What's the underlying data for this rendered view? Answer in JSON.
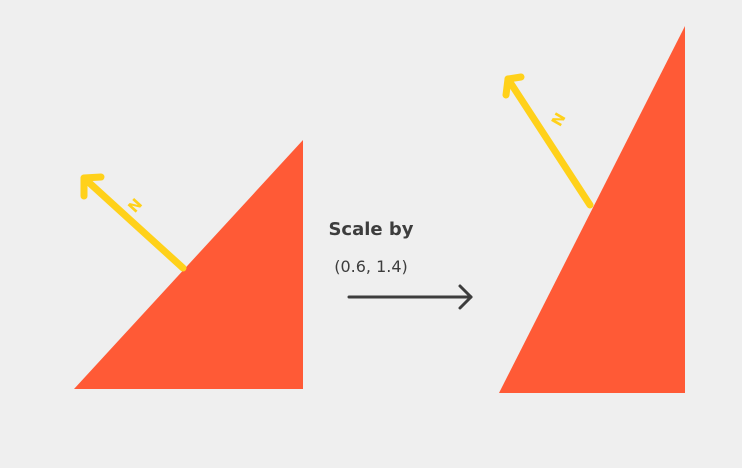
{
  "diagram": {
    "caption": {
      "title": "Scale by",
      "factors": "(0.6, 1.4)"
    },
    "normal_label": "N",
    "colors": {
      "background": "#efefef",
      "triangle": "#ff5a36",
      "normal_arrow": "#ffd11a",
      "transform_arrow": "#3d3d3d"
    }
  }
}
